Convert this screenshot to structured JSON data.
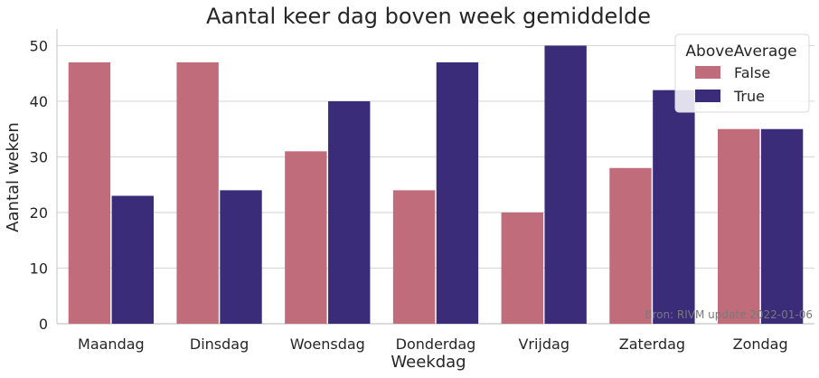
{
  "chart_data": {
    "type": "bar",
    "title": "Aantal keer dag boven week gemiddelde",
    "xlabel": "Weekdag",
    "ylabel": "Aantal weken",
    "categories": [
      "Maandag",
      "Dinsdag",
      "Woensdag",
      "Donderdag",
      "Vrijdag",
      "Zaterdag",
      "Zondag"
    ],
    "series": [
      {
        "name": "False",
        "color": "#c06c7b",
        "values": [
          47,
          47,
          31,
          24,
          20,
          28,
          35
        ]
      },
      {
        "name": "True",
        "color": "#3b2c7a",
        "values": [
          23,
          24,
          40,
          47,
          50,
          42,
          35
        ]
      }
    ],
    "ylim": [
      0,
      53
    ],
    "yticks": [
      0,
      10,
      20,
      30,
      40,
      50
    ],
    "grid": true,
    "legend": {
      "title": "AboveAverage",
      "placement": "top-right"
    },
    "annotation": "Bron: RIVM update 2022-01-06"
  }
}
